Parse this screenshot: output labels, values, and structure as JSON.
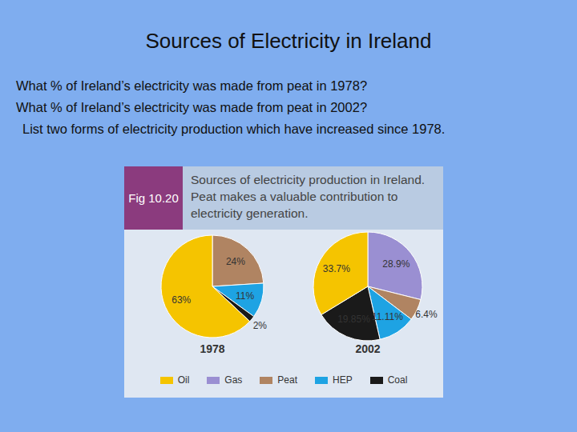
{
  "slide": {
    "title": "Sources of Electricity in Ireland",
    "questions": [
      "What % of Ireland’s electricity was made from peat in 1978?",
      "What % of Ireland’s electricity was made from peat in 2002?",
      "List two forms of electricity production which have increased since 1978."
    ]
  },
  "figure": {
    "label": "Fig 10.20",
    "caption": "Sources of electricity production in Ireland. Peat makes a valuable contribution to electricity generation.",
    "legend_items": [
      {
        "name": "Oil",
        "color": "#f5c400"
      },
      {
        "name": "Gas",
        "color": "#9a8fd2"
      },
      {
        "name": "Peat",
        "color": "#b08462"
      },
      {
        "name": "HEP",
        "color": "#1ea3e3"
      },
      {
        "name": "Coal",
        "color": "#1a1a1a"
      }
    ]
  },
  "chart_data": [
    {
      "type": "pie",
      "title": "1978",
      "categories": [
        "Peat",
        "HEP",
        "Coal",
        "Oil"
      ],
      "values": [
        24,
        11,
        2,
        63
      ],
      "value_labels": [
        "24%",
        "11%",
        "2%",
        "63%"
      ],
      "colors": [
        "#b08462",
        "#1ea3e3",
        "#1a1a1a",
        "#f5c400"
      ],
      "data_labels": true
    },
    {
      "type": "pie",
      "title": "2002",
      "categories": [
        "Gas",
        "Peat",
        "HEP",
        "Coal",
        "Oil"
      ],
      "values": [
        28.9,
        6.4,
        11.11,
        19.85,
        33.7
      ],
      "value_labels": [
        "28.9%",
        "6.4%",
        "11.11%",
        "19.85%",
        "33.7%"
      ],
      "colors": [
        "#9a8fd2",
        "#b08462",
        "#1ea3e3",
        "#1a1a1a",
        "#f5c400"
      ],
      "data_labels": true
    }
  ]
}
